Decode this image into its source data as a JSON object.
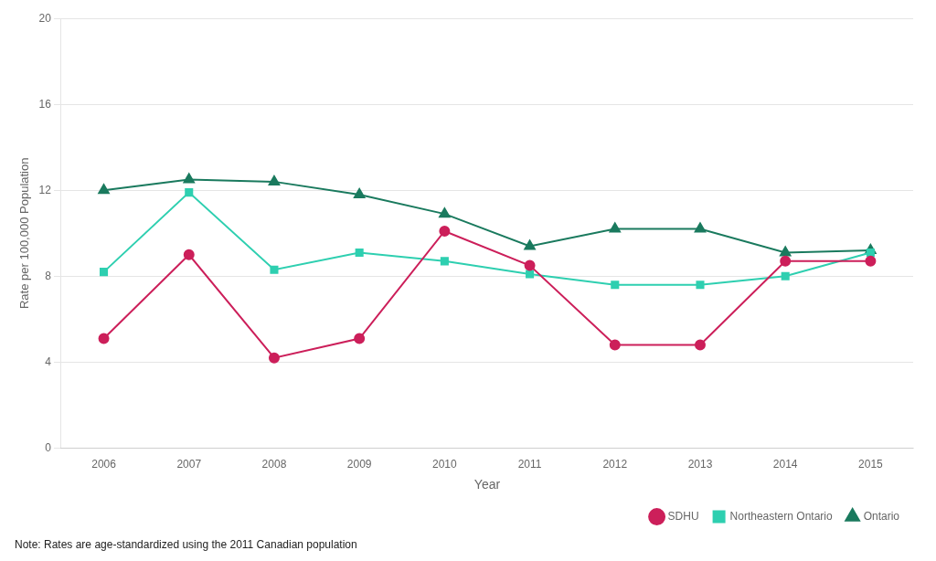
{
  "chart_data": {
    "type": "line",
    "categories": [
      "2006",
      "2007",
      "2008",
      "2009",
      "2010",
      "2011",
      "2012",
      "2013",
      "2014",
      "2015"
    ],
    "series": [
      {
        "name": "SDHU",
        "color": "#cc1f5a",
        "marker": "circle",
        "line_style": "solid",
        "values": [
          5.1,
          9.0,
          4.2,
          5.1,
          10.1,
          8.5,
          4.8,
          4.8,
          8.7,
          8.7
        ]
      },
      {
        "name": "Northeastern Ontario",
        "color": "#2ecfb0",
        "marker": "square",
        "line_style": "solid",
        "values": [
          8.2,
          11.9,
          8.3,
          9.1,
          8.7,
          8.1,
          7.6,
          7.6,
          8.0,
          9.1
        ]
      },
      {
        "name": "Ontario",
        "color": "#1a7a5e",
        "marker": "triangle",
        "line_style": "solid",
        "values": [
          12.0,
          12.5,
          12.4,
          11.8,
          10.9,
          9.4,
          10.2,
          10.2,
          9.1,
          9.2
        ]
      }
    ],
    "xlabel": "Year",
    "ylabel": "Rate per 100,000 Population",
    "ylim": [
      0,
      20
    ],
    "yticks": [
      0,
      4,
      8,
      12,
      16,
      20
    ],
    "grid": true,
    "legend": "lower right",
    "annotations": [
      "Note: Rates are age-standardized using the 2011 Canadian population"
    ]
  }
}
